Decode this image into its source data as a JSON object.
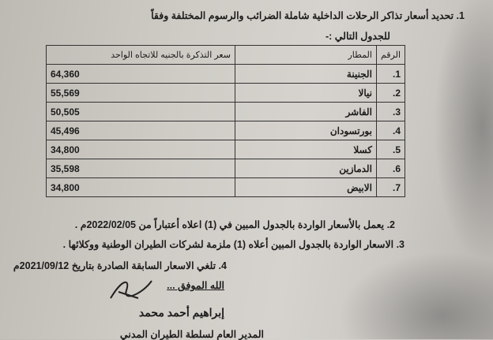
{
  "intro": {
    "line1": "1.  تحديد أسعار تذاكر الرحلات الداخلية شاملة الضرائب والرسوم المختلفة وفقاً",
    "line2": "للجدول التالي :-"
  },
  "table": {
    "headers": [
      "الرقم",
      "المطار",
      "سعر التذكرة بالجنيه للاتجاه الواحد"
    ],
    "rows": [
      {
        "n": "1.",
        "airport": "الجنينة",
        "price": "64,360"
      },
      {
        "n": "2.",
        "airport": "نيالا",
        "price": "55,569"
      },
      {
        "n": "3.",
        "airport": "الفاشر",
        "price": "50,505"
      },
      {
        "n": "4.",
        "airport": "بورتسودان",
        "price": "45,496"
      },
      {
        "n": "5.",
        "airport": "كسلا",
        "price": "34,800"
      },
      {
        "n": "6.",
        "airport": "الدمازين",
        "price": "35,598"
      },
      {
        "n": "7.",
        "airport": "الابيض",
        "price": "34,800"
      }
    ]
  },
  "items": [
    "2.  يعمل بالأسعار الواردة بالجدول المبين في (1) اعلاه أعتباراً من 2022/02/05م .",
    "3.  الاسعار الواردة بالجدول المبين أعلاه (1) ملزمة لشركات الطيران الوطنية ووكلائها .",
    "4.  تلغي الاسعار السابقة الصادرة بتاريخ 2021/09/12م"
  ],
  "closing": "الله الموفق ...",
  "signatory": "إبراهيم أحمد محمد",
  "footer_partial": "المدير العام لسلطة الطيران المدني"
}
